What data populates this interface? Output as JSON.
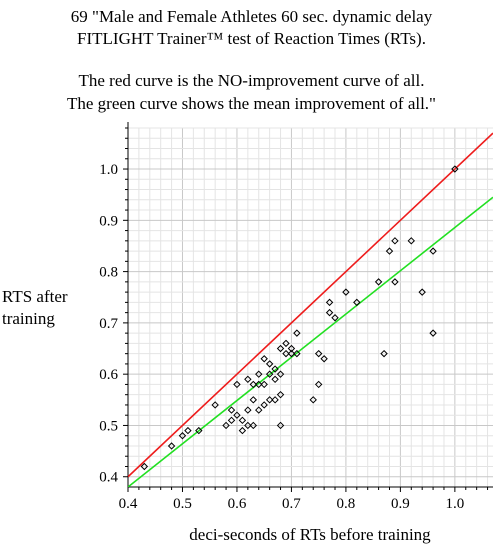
{
  "chart_data": {
    "type": "scatter",
    "title_lines": [
      "69 \"Male and Female Athletes 60 sec. dynamic delay",
      "FITLIGHT Trainer™ test of Reaction Times (RTs).",
      "The red curve is the NO-improvement curve of all.",
      "The green curve shows the mean improvement of  all.\""
    ],
    "ylabel_lines": [
      "RTS after",
      "training"
    ],
    "xlabel": "deci-seconds of RTs before training",
    "xlim": [
      0.4,
      1.07
    ],
    "ylim": [
      0.38,
      1.08
    ],
    "xticks": [
      "0.4",
      "0.5",
      "0.6",
      "0.7",
      "0.8",
      "0.9",
      "1.0"
    ],
    "yticks": [
      "0.4",
      "0.5",
      "0.6",
      "0.7",
      "0.8",
      "0.9",
      "1.0"
    ],
    "grid": true,
    "lines": [
      {
        "name": "NO-improvement",
        "color": "#ee1c1c",
        "x": [
          0.4,
          1.07
        ],
        "y": [
          0.4,
          1.07
        ]
      },
      {
        "name": "mean improvement",
        "color": "#22e022",
        "x": [
          0.4,
          1.07
        ],
        "y": [
          0.38,
          0.945
        ]
      }
    ],
    "points": [
      [
        0.43,
        0.42
      ],
      [
        0.48,
        0.46
      ],
      [
        0.5,
        0.48
      ],
      [
        0.51,
        0.49
      ],
      [
        0.53,
        0.49
      ],
      [
        0.56,
        0.54
      ],
      [
        0.58,
        0.5
      ],
      [
        0.59,
        0.51
      ],
      [
        0.59,
        0.53
      ],
      [
        0.6,
        0.52
      ],
      [
        0.61,
        0.49
      ],
      [
        0.6,
        0.58
      ],
      [
        0.61,
        0.51
      ],
      [
        0.62,
        0.5
      ],
      [
        0.62,
        0.53
      ],
      [
        0.62,
        0.59
      ],
      [
        0.63,
        0.5
      ],
      [
        0.63,
        0.55
      ],
      [
        0.63,
        0.58
      ],
      [
        0.64,
        0.53
      ],
      [
        0.64,
        0.58
      ],
      [
        0.64,
        0.6
      ],
      [
        0.65,
        0.54
      ],
      [
        0.65,
        0.58
      ],
      [
        0.65,
        0.63
      ],
      [
        0.66,
        0.55
      ],
      [
        0.66,
        0.6
      ],
      [
        0.66,
        0.62
      ],
      [
        0.67,
        0.55
      ],
      [
        0.67,
        0.59
      ],
      [
        0.67,
        0.61
      ],
      [
        0.68,
        0.5
      ],
      [
        0.68,
        0.56
      ],
      [
        0.68,
        0.6
      ],
      [
        0.68,
        0.65
      ],
      [
        0.69,
        0.64
      ],
      [
        0.69,
        0.66
      ],
      [
        0.7,
        0.64
      ],
      [
        0.7,
        0.65
      ],
      [
        0.71,
        0.64
      ],
      [
        0.71,
        0.68
      ],
      [
        0.74,
        0.55
      ],
      [
        0.75,
        0.58
      ],
      [
        0.75,
        0.64
      ],
      [
        0.76,
        0.63
      ],
      [
        0.77,
        0.72
      ],
      [
        0.77,
        0.74
      ],
      [
        0.78,
        0.71
      ],
      [
        0.8,
        0.76
      ],
      [
        0.82,
        0.74
      ],
      [
        0.86,
        0.78
      ],
      [
        0.87,
        0.64
      ],
      [
        0.88,
        0.84
      ],
      [
        0.89,
        0.78
      ],
      [
        0.89,
        0.86
      ],
      [
        0.92,
        0.86
      ],
      [
        0.94,
        0.76
      ],
      [
        0.96,
        0.68
      ],
      [
        0.96,
        0.84
      ],
      [
        1.0,
        1.0
      ]
    ]
  }
}
